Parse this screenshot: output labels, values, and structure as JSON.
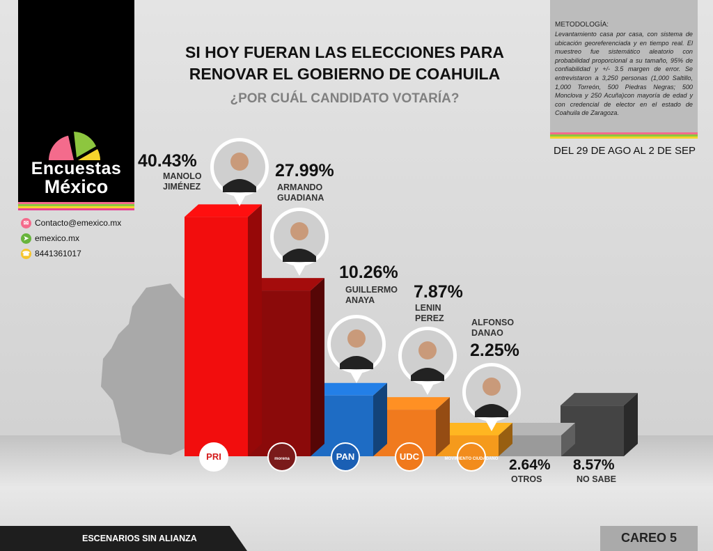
{
  "brand": {
    "name_line1": "Encuestas",
    "name_line2": "México",
    "pie_colors": [
      "#f46b8c",
      "#8dc63f",
      "#f6d42c"
    ]
  },
  "contact": [
    {
      "icon": "email-icon",
      "text": "Contacto@emexico.mx",
      "color": "#f46b8c"
    },
    {
      "icon": "cursor-icon",
      "text": "emexico.mx",
      "color": "#67b43c"
    },
    {
      "icon": "phone-icon",
      "text": "8441361017",
      "color": "#f6c52c"
    }
  ],
  "header": {
    "title_line1": "SI HOY FUERAN LAS ELECCIONES PARA",
    "title_line2": "RENOVAR EL GOBIERNO DE COAHUILA",
    "subtitle": "¿POR CUÁL CANDIDATO VOTARÍA?"
  },
  "methodology": {
    "title": "METODOLOGÍA:",
    "body": "Levantamiento casa por casa, con sistema de ubicación georeferenciada y en tiempo real. El muestreo fue sistemático aleatorio con probabilidad proporcional a su tamaño, 95% de confiabilidad y +/- 3.5 margen de error. Se entrevistaron a 3,250 personas (1,000 Saltillo, 1,000 Torreón, 500 Piedras Negras; 500 Monclova y 250 Acuña)con mayoría de edad y con credencial de elector en el estado de Coahuila de Zaragoza.",
    "date_range": "DEL 29 DE AGO AL 2 DE SEP"
  },
  "stripe_colors": [
    "#f46b8c",
    "#8dc63f",
    "#f6d42c",
    "#e84393"
  ],
  "chart_data": {
    "type": "bar",
    "title": "SI HOY FUERAN LAS ELECCIONES PARA RENOVAR EL GOBIERNO DE COAHUILA",
    "subtitle": "¿POR CUÁL CANDIDATO VOTARÍA?",
    "categories": [
      "MANOLO JIMÉNEZ",
      "ARMANDO GUADIANA",
      "GUILLERMO ANAYA",
      "LENIN PEREZ",
      "ALFONSO DANAO",
      "OTROS",
      "NO SABE"
    ],
    "values": [
      40.43,
      27.99,
      10.26,
      7.87,
      2.25,
      2.64,
      8.57
    ],
    "value_labels": [
      "40.43%",
      "27.99%",
      "10.26%",
      "7.87%",
      "2.25%",
      "2.64%",
      "8.57%"
    ],
    "parties": [
      "PRI",
      "morena",
      "PAN",
      "UDC",
      "MC",
      "",
      ""
    ],
    "colors": [
      "#f20d0d",
      "#8b0a0a",
      "#1e6cc4",
      "#f07a1e",
      "#f59a1c",
      "#9a9a9a",
      "#444444"
    ]
  },
  "candidates": [
    {
      "pct": "40.43%",
      "name": "MANOLO\nJIMÉNEZ"
    },
    {
      "pct": "27.99%",
      "name": "ARMANDO\nGUADIANA"
    },
    {
      "pct": "10.26%",
      "name": "GUILLERMO\nANAYA"
    },
    {
      "pct": "7.87%",
      "name": "LENIN\nPEREZ"
    },
    {
      "pct": "2.25%",
      "name": "ALFONSO\nDANAO"
    }
  ],
  "others": {
    "pct": "2.64%",
    "label": "OTROS"
  },
  "no_sabe": {
    "pct": "8.57%",
    "label": "NO SABE"
  },
  "party_logos": [
    {
      "text": "PRI",
      "bg": "#ffffff",
      "fg": "#d41c1c"
    },
    {
      "text": "morena",
      "bg": "#7a1a1a",
      "fg": "#ffffff"
    },
    {
      "text": "PAN",
      "bg": "#1a5fb4",
      "fg": "#ffffff"
    },
    {
      "text": "UDC",
      "bg": "#f0791c",
      "fg": "#ffffff"
    },
    {
      "text": "MOVIMIENTO CIUDADANO",
      "bg": "#f28c1c",
      "fg": "#ffffff"
    }
  ],
  "footer": {
    "left": "ESCENARIOS SIN ALIANZA",
    "right": "CAREO 5"
  }
}
